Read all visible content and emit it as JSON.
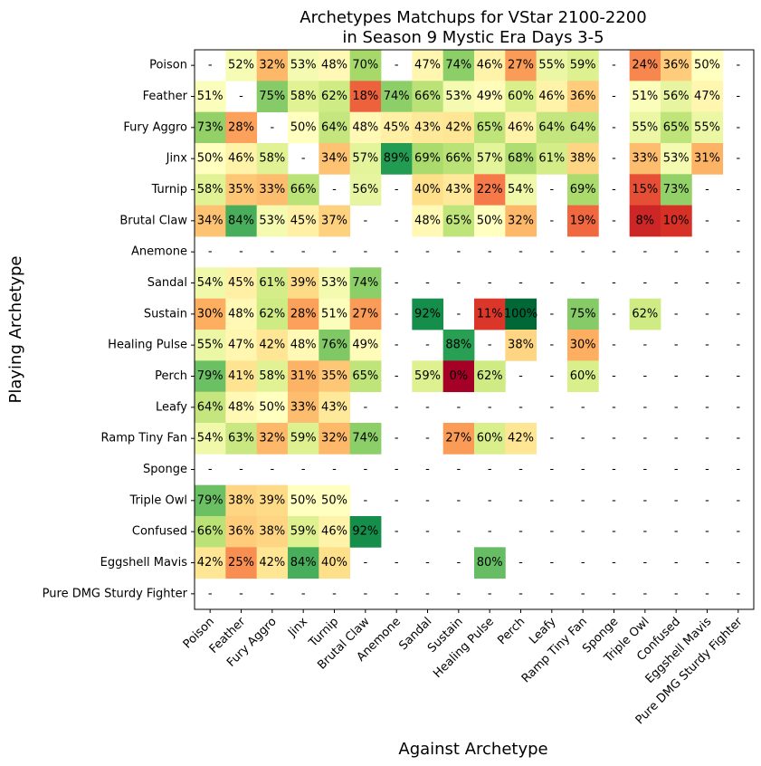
{
  "chart_data": {
    "type": "heatmap",
    "title_lines": [
      "Archetypes Matchups for VStar 2100-2200",
      "in Season 9 Mystic Era Days 3-5"
    ],
    "xlabel": "Against Archetype",
    "ylabel": "Playing Archetype",
    "row_labels": [
      "Poison",
      "Feather",
      "Fury Aggro",
      "Jinx",
      "Turnip",
      "Brutal Claw",
      "Anemone",
      "Sandal",
      "Sustain",
      "Healing Pulse",
      "Perch",
      "Leafy",
      "Ramp Tiny Fan",
      "Sponge",
      "Triple Owl",
      "Confused",
      "Eggshell Mavis",
      "Pure DMG Sturdy Fighter"
    ],
    "col_labels": [
      "Poison",
      "Feather",
      "Fury Aggro",
      "Jinx",
      "Turnip",
      "Brutal Claw",
      "Anemone",
      "Sandal",
      "Sustain",
      "Healing Pulse",
      "Perch",
      "Leafy",
      "Ramp Tiny Fan",
      "Sponge",
      "Triple Owl",
      "Confused",
      "Eggshell Mavis",
      "Pure DMG Sturdy Fighter"
    ],
    "colormap": "RdYlGn",
    "value_range": [
      0,
      100
    ],
    "missing_label": "-",
    "values": [
      [
        null,
        52,
        32,
        53,
        48,
        70,
        null,
        47,
        74,
        46,
        27,
        55,
        59,
        null,
        24,
        36,
        50,
        null
      ],
      [
        51,
        null,
        75,
        58,
        62,
        18,
        74,
        66,
        53,
        49,
        60,
        46,
        36,
        null,
        51,
        56,
        47,
        null
      ],
      [
        73,
        28,
        null,
        50,
        64,
        48,
        45,
        43,
        42,
        65,
        46,
        64,
        64,
        null,
        55,
        65,
        55,
        null
      ],
      [
        50,
        46,
        58,
        null,
        34,
        57,
        89,
        69,
        66,
        57,
        68,
        61,
        38,
        null,
        33,
        53,
        31,
        null
      ],
      [
        58,
        35,
        33,
        66,
        null,
        56,
        null,
        40,
        43,
        22,
        54,
        null,
        69,
        null,
        15,
        73,
        null,
        null
      ],
      [
        34,
        84,
        53,
        45,
        37,
        null,
        null,
        48,
        65,
        50,
        32,
        null,
        19,
        null,
        8,
        10,
        null,
        null
      ],
      [
        null,
        null,
        null,
        null,
        null,
        null,
        null,
        null,
        null,
        null,
        null,
        null,
        null,
        null,
        null,
        null,
        null,
        null
      ],
      [
        54,
        45,
        61,
        39,
        53,
        74,
        null,
        null,
        null,
        null,
        null,
        null,
        null,
        null,
        null,
        null,
        null,
        null
      ],
      [
        30,
        48,
        62,
        28,
        51,
        27,
        null,
        92,
        null,
        11,
        100,
        null,
        75,
        null,
        62,
        null,
        null,
        null
      ],
      [
        55,
        47,
        42,
        48,
        76,
        49,
        null,
        null,
        88,
        null,
        38,
        null,
        30,
        null,
        null,
        null,
        null,
        null
      ],
      [
        79,
        41,
        58,
        31,
        35,
        65,
        null,
        59,
        0,
        62,
        null,
        null,
        60,
        null,
        null,
        null,
        null,
        null
      ],
      [
        64,
        48,
        50,
        33,
        43,
        null,
        null,
        null,
        null,
        null,
        null,
        null,
        null,
        null,
        null,
        null,
        null,
        null
      ],
      [
        54,
        63,
        32,
        59,
        32,
        74,
        null,
        null,
        27,
        60,
        42,
        null,
        null,
        null,
        null,
        null,
        null,
        null
      ],
      [
        null,
        null,
        null,
        null,
        null,
        null,
        null,
        null,
        null,
        null,
        null,
        null,
        null,
        null,
        null,
        null,
        null,
        null
      ],
      [
        79,
        38,
        39,
        50,
        50,
        null,
        null,
        null,
        null,
        null,
        null,
        null,
        null,
        null,
        null,
        null,
        null,
        null
      ],
      [
        66,
        36,
        38,
        59,
        46,
        92,
        null,
        null,
        null,
        null,
        null,
        null,
        null,
        null,
        null,
        null,
        null,
        null
      ],
      [
        42,
        25,
        42,
        84,
        40,
        null,
        null,
        null,
        null,
        80,
        null,
        null,
        null,
        null,
        null,
        null,
        null,
        null
      ],
      [
        null,
        null,
        null,
        null,
        null,
        null,
        null,
        null,
        null,
        null,
        null,
        null,
        null,
        null,
        null,
        null,
        null,
        null
      ]
    ]
  }
}
